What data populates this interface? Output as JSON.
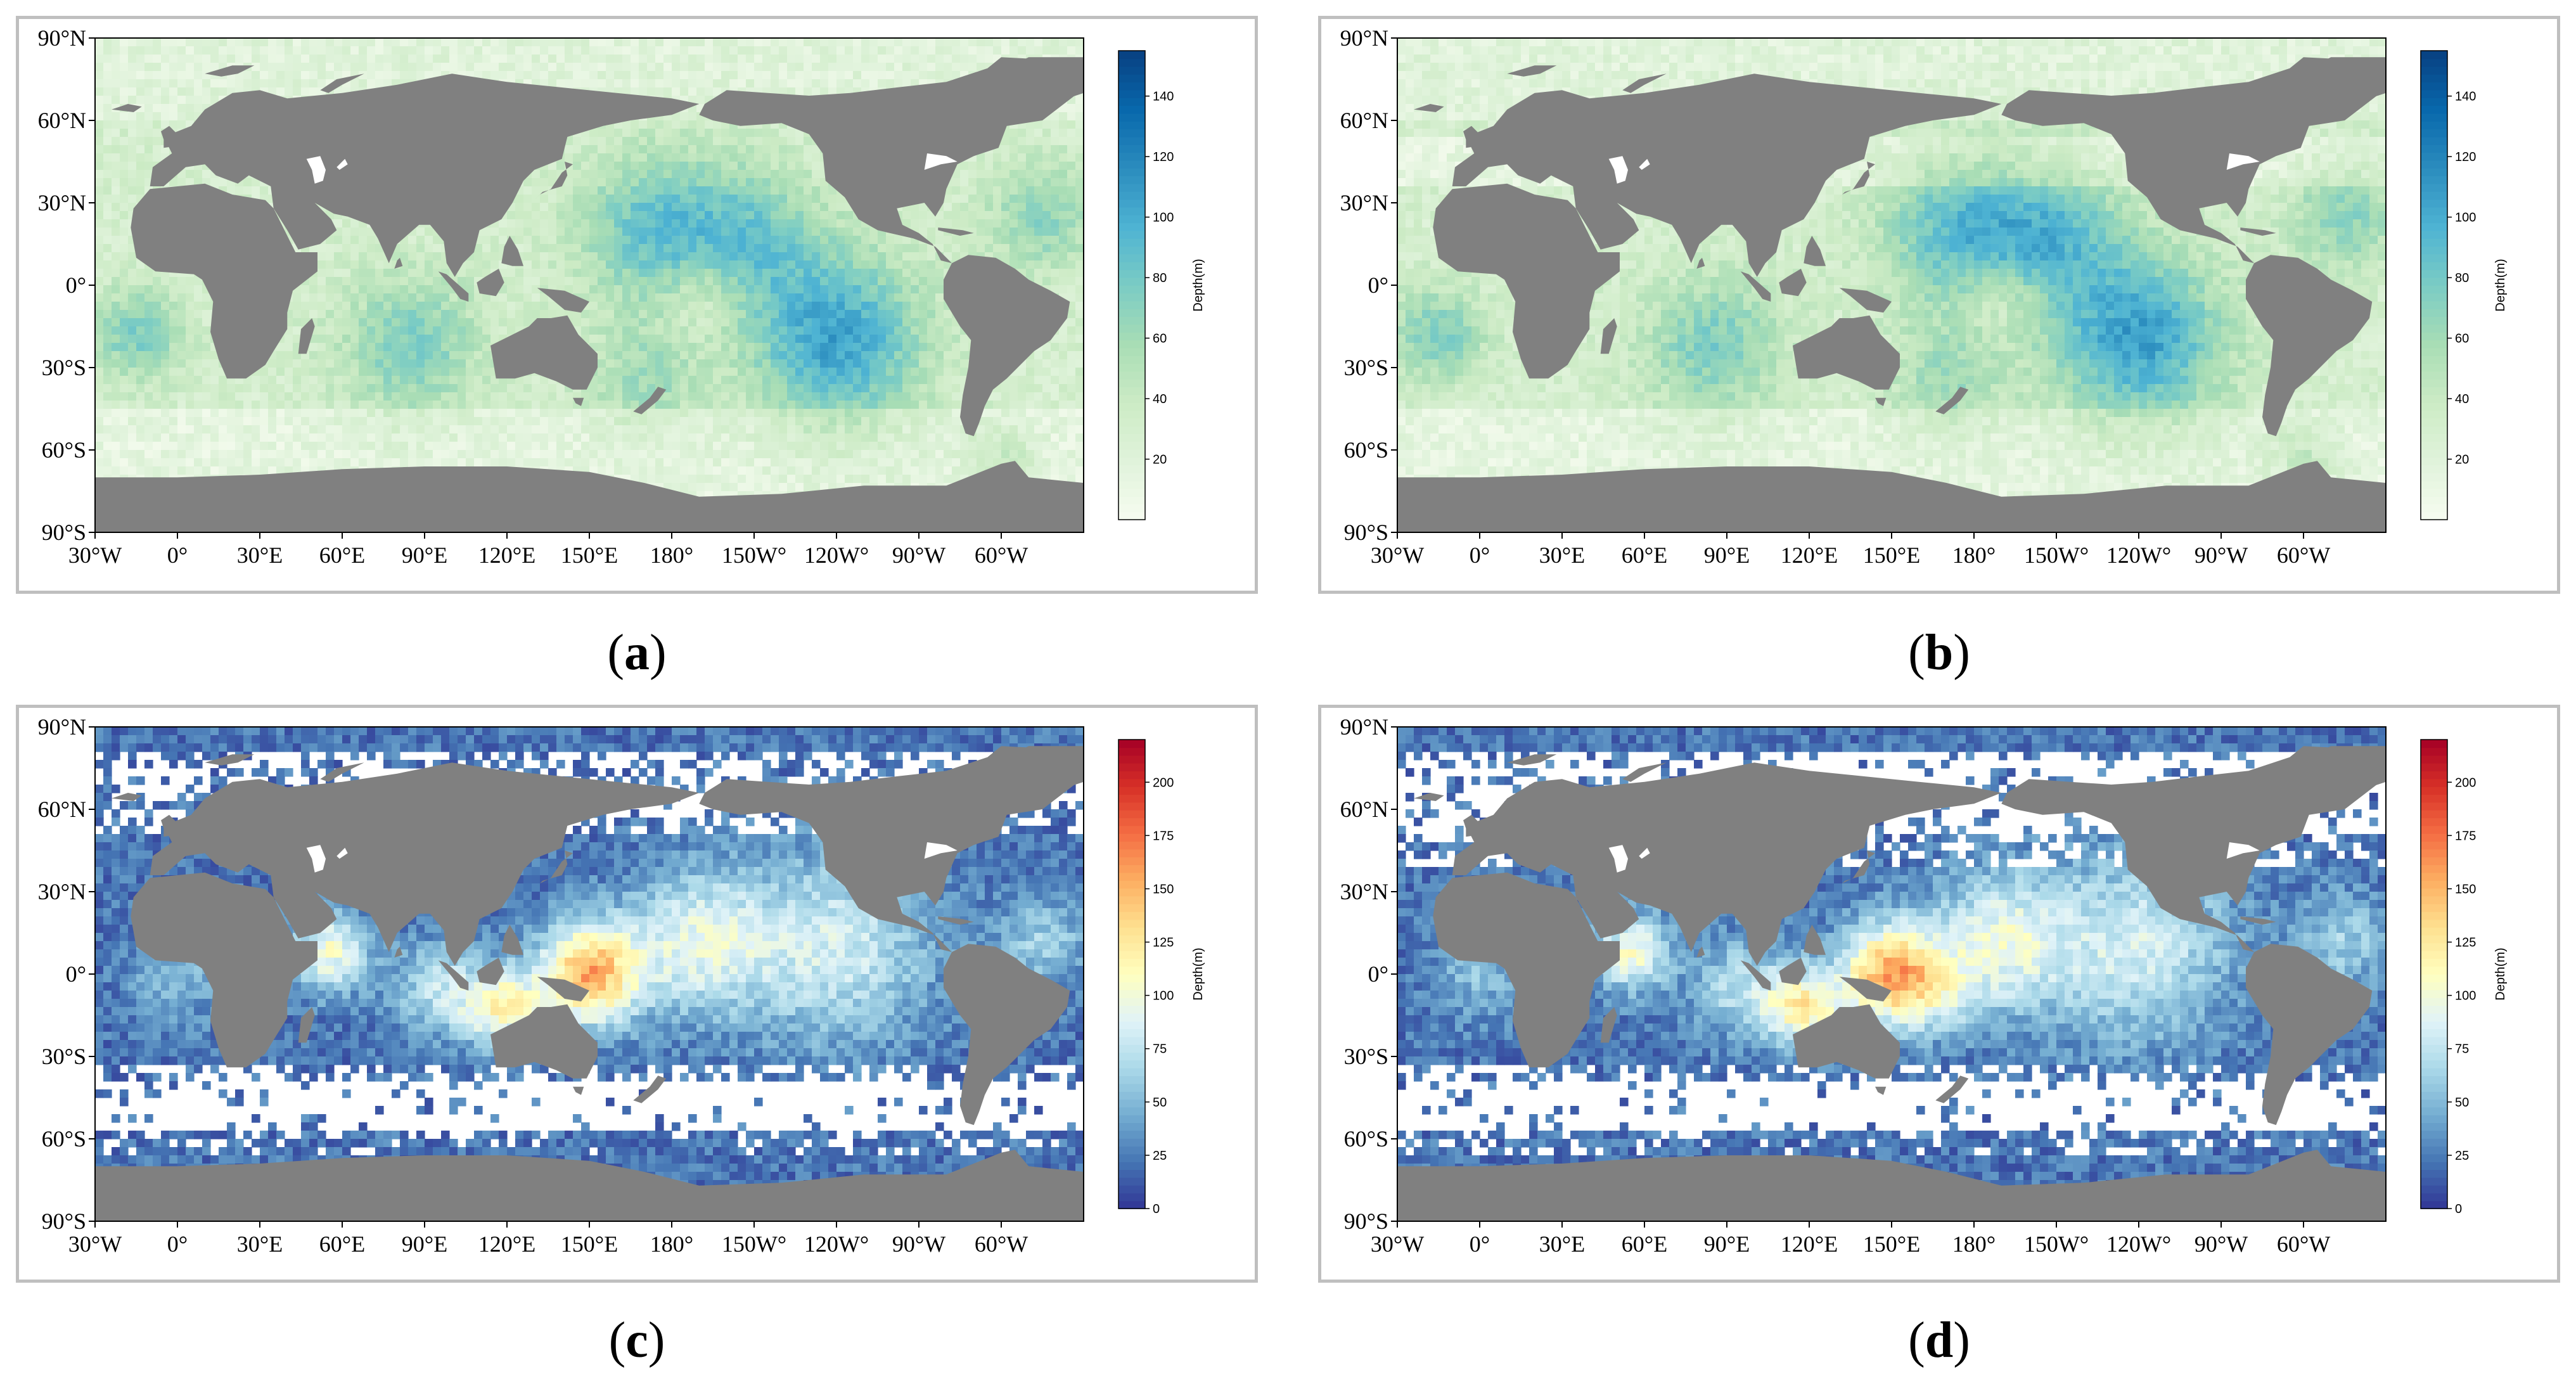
{
  "panels": [
    {
      "id": "a",
      "caption_letter": "a",
      "colormap": "GnBu",
      "colorbar": {
        "label": "Depth(m)",
        "min": 0,
        "max": 155,
        "ticks": [
          "20",
          "40",
          "60",
          "80",
          "100",
          "120",
          "140"
        ],
        "tick_values": [
          20,
          40,
          60,
          80,
          100,
          120,
          140
        ]
      }
    },
    {
      "id": "b",
      "caption_letter": "b",
      "colormap": "GnBu",
      "colorbar": {
        "label": "Depth(m)",
        "min": 0,
        "max": 155,
        "ticks": [
          "20",
          "40",
          "60",
          "80",
          "100",
          "120",
          "140"
        ],
        "tick_values": [
          20,
          40,
          60,
          80,
          100,
          120,
          140
        ]
      }
    },
    {
      "id": "c",
      "caption_letter": "c",
      "colormap": "RdYlBu_r",
      "colorbar": {
        "label": "Depth(m)",
        "min": 0,
        "max": 220,
        "ticks": [
          "0",
          "25",
          "50",
          "75",
          "100",
          "125",
          "150",
          "175",
          "200"
        ],
        "tick_values": [
          0,
          25,
          50,
          75,
          100,
          125,
          150,
          175,
          200
        ]
      }
    },
    {
      "id": "d",
      "caption_letter": "d",
      "colormap": "RdYlBu_r",
      "colorbar": {
        "label": "Depth(m)",
        "min": 0,
        "max": 220,
        "ticks": [
          "0",
          "25",
          "50",
          "75",
          "100",
          "125",
          "150",
          "175",
          "200"
        ],
        "tick_values": [
          0,
          25,
          50,
          75,
          100,
          125,
          150,
          175,
          200
        ]
      }
    }
  ],
  "axes": {
    "lat_labels": [
      "90°N",
      "60°N",
      "30°N",
      "0°",
      "30°S",
      "60°S",
      "90°S"
    ],
    "lat_values": [
      90,
      60,
      30,
      0,
      -30,
      -60,
      -90
    ],
    "lon_labels": [
      "30°W",
      "0°",
      "30°E",
      "60°E",
      "90°E",
      "120°E",
      "150°E",
      "180°",
      "150W°",
      "120W°",
      "90°W",
      "60°W"
    ],
    "lon_values": [
      -30,
      0,
      30,
      60,
      90,
      120,
      150,
      180,
      210,
      240,
      270,
      300
    ],
    "lon_range": [
      -30,
      330
    ],
    "lat_range": [
      -90,
      90
    ]
  },
  "colors": {
    "land": "#808080",
    "panel_border": "#bfbfbf"
  }
}
